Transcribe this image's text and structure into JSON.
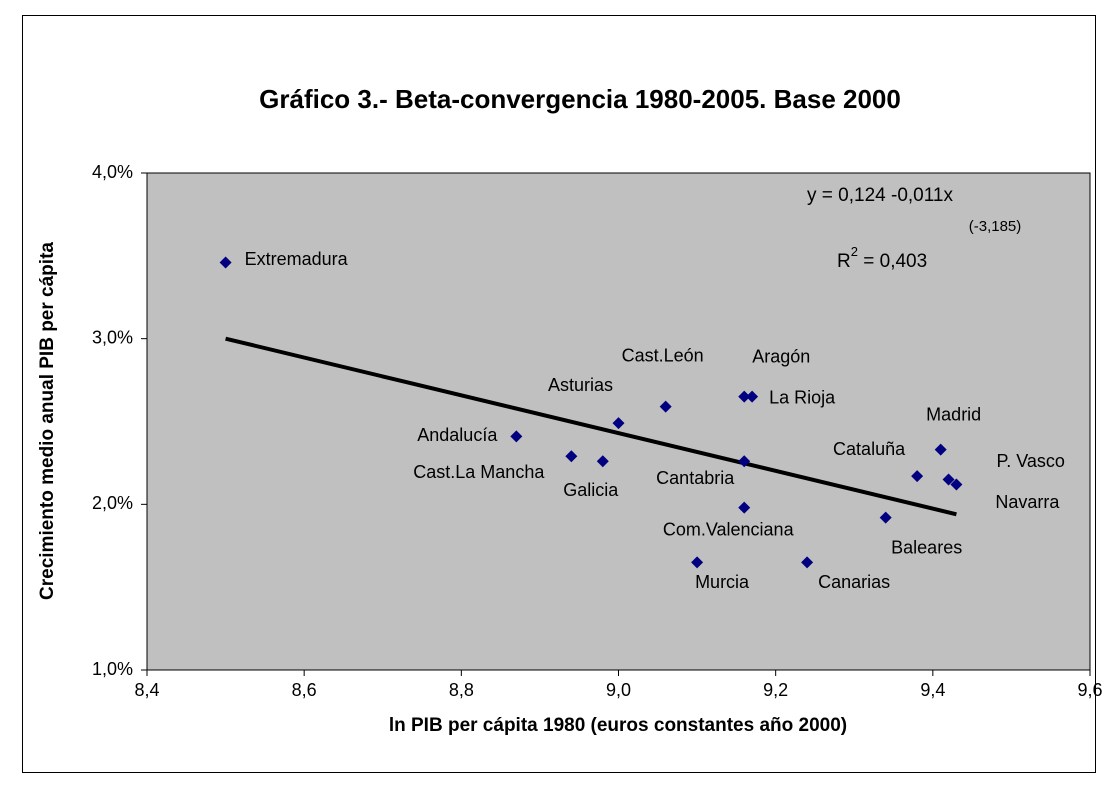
{
  "chart_data": {
    "type": "scatter",
    "title": "Gráfico 3.- Beta-convergencia 1980-2005. Base 2000",
    "x_label": "ln PIB per cápita 1980 (euros constantes año 2000)",
    "y_label": "Crecimiento medio anual PIB per cápita",
    "point_labels": [
      "Extremadura",
      "Andalucía",
      "Cast.La Mancha",
      "Galicia",
      "Asturias",
      "Cast.León",
      "Aragón",
      "La Rioja",
      "Cantabria",
      "Com.Valenciana",
      "Murcia",
      "Canarias",
      "Baleares",
      "Cataluña",
      "Madrid",
      "P. Vasco",
      "Navarra"
    ],
    "x": [
      8.5,
      8.87,
      8.94,
      8.98,
      9.0,
      9.06,
      9.16,
      9.17,
      9.16,
      9.16,
      9.1,
      9.24,
      9.34,
      9.38,
      9.41,
      9.42,
      9.43
    ],
    "values": [
      3.46,
      2.41,
      2.29,
      2.26,
      2.49,
      2.59,
      2.65,
      2.65,
      2.26,
      1.98,
      1.65,
      1.65,
      1.92,
      2.17,
      2.33,
      2.15,
      2.12
    ],
    "color": "#000080",
    "trendline": {
      "x": [
        8.5,
        9.43
      ],
      "values": [
        3.0,
        1.94
      ],
      "color": "#000000"
    },
    "annotations": {
      "equation": "y = 0,124 -0,011x",
      "t_stat": "(-3,185)",
      "r2_base": "R",
      "r2_sup": "2",
      "r2_rest": " = 0,403"
    },
    "xlim": [
      8.4,
      9.6
    ],
    "xticks": [
      {
        "value": 8.4,
        "label": "8,4"
      },
      {
        "value": 8.6,
        "label": "8,6"
      },
      {
        "value": 8.8,
        "label": "8,8"
      },
      {
        "value": 9.0,
        "label": "9,0"
      },
      {
        "value": 9.2,
        "label": "9,2"
      },
      {
        "value": 9.4,
        "label": "9,4"
      },
      {
        "value": 9.6,
        "label": "9,6"
      }
    ],
    "ylim": [
      1.0,
      4.0
    ],
    "yticks": [
      {
        "value": 1.0,
        "label": "1,0%"
      },
      {
        "value": 2.0,
        "label": "2,0%"
      },
      {
        "value": 3.0,
        "label": "3,0%"
      },
      {
        "value": 4.0,
        "label": "4,0%"
      }
    ],
    "grid": false,
    "plot_background": "#c0c0c0"
  }
}
